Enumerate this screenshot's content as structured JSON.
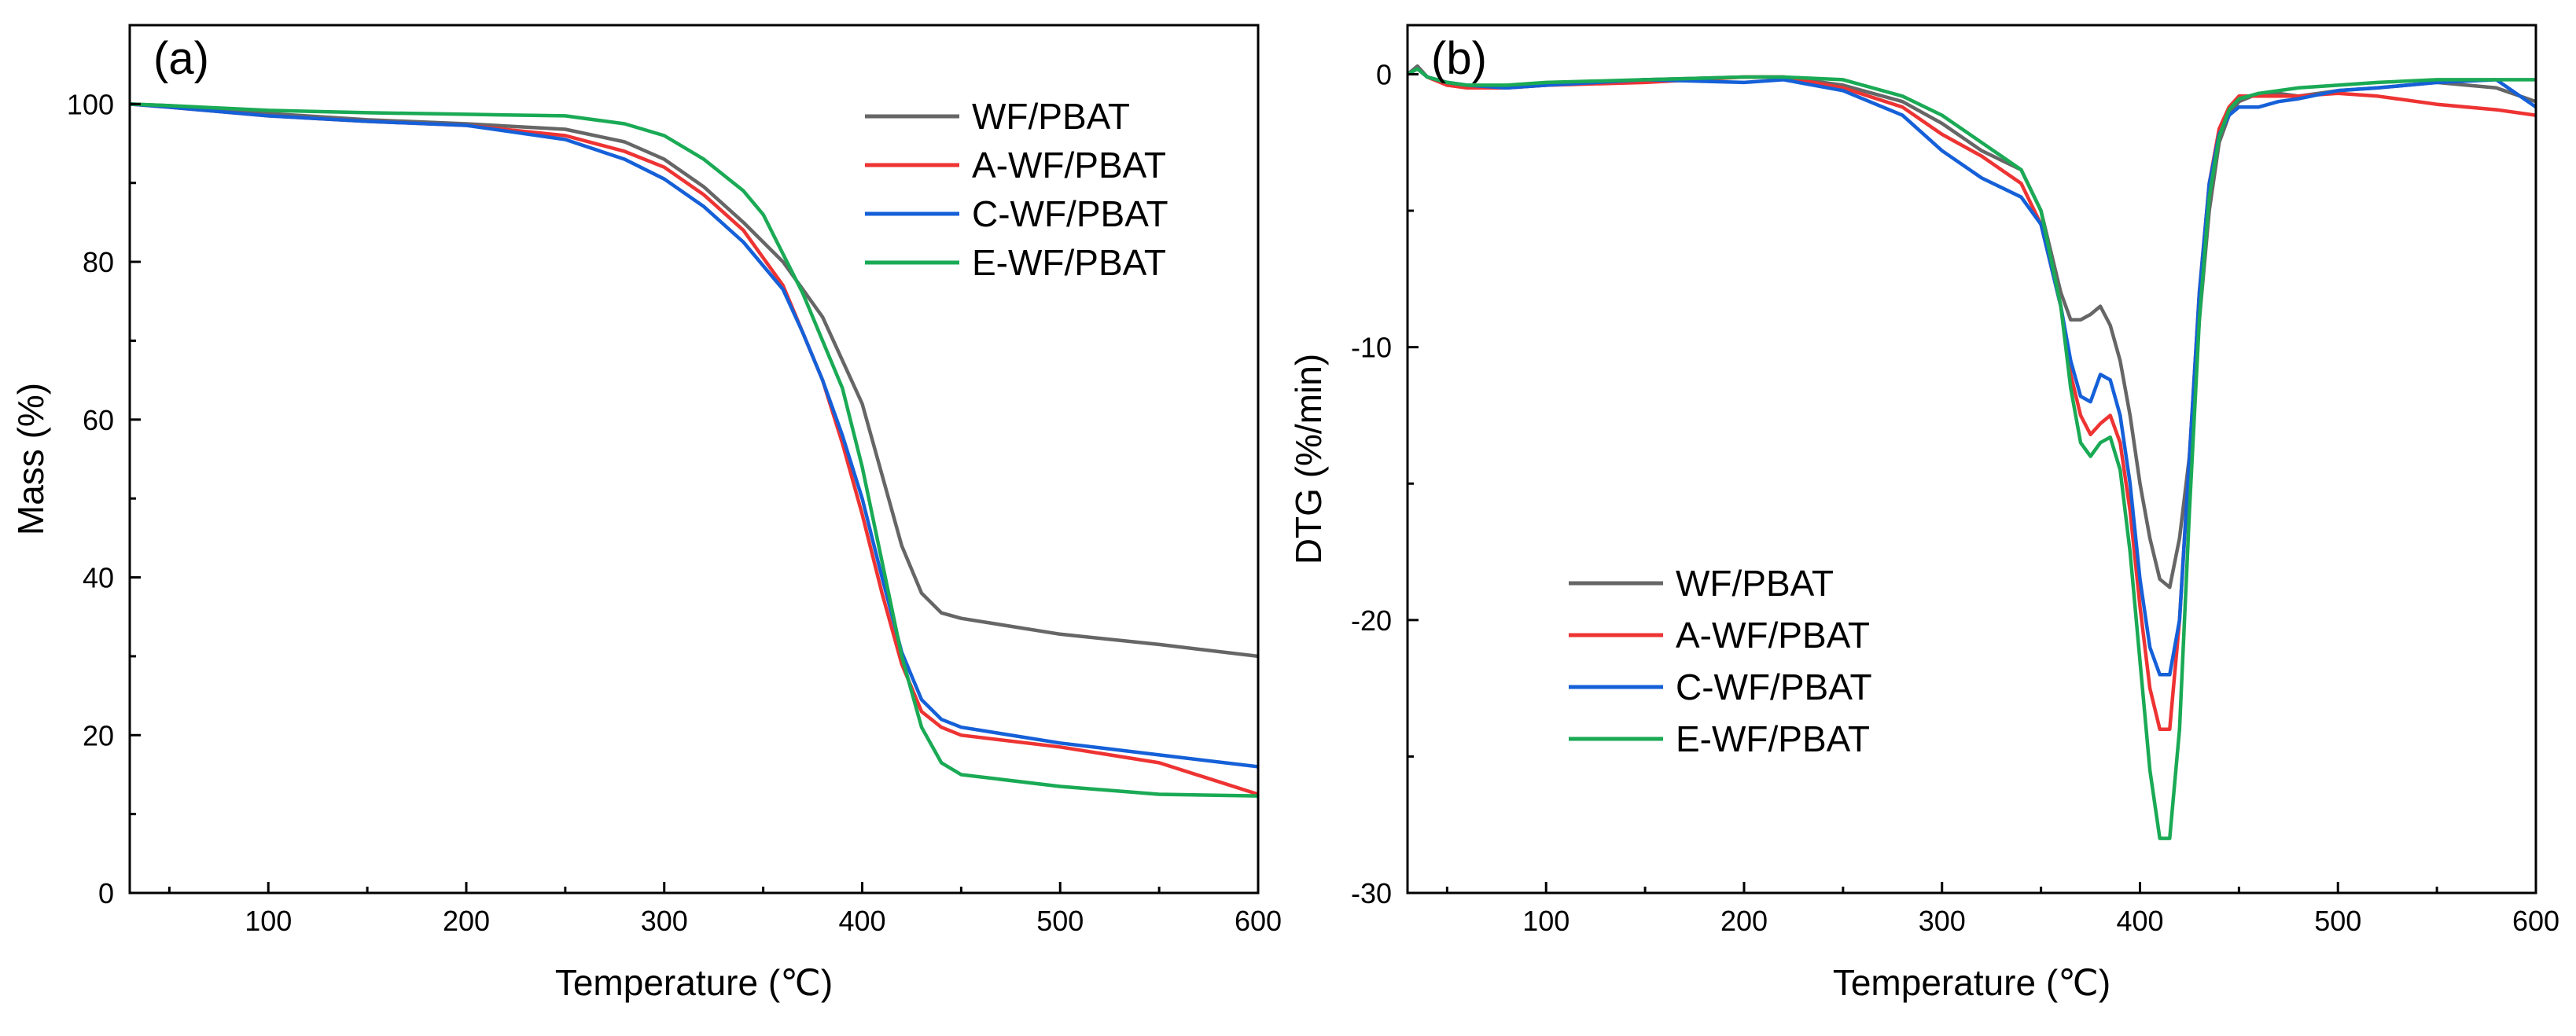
{
  "chart_data": [
    {
      "type": "line",
      "panel_label": "(a)",
      "xlabel": "Temperature (℃)",
      "ylabel": "Mass (%)",
      "xlim": [
        30,
        600
      ],
      "ylim": [
        0,
        110
      ],
      "xticks": [
        100,
        200,
        300,
        400,
        500,
        600
      ],
      "yticks": [
        0,
        20,
        40,
        60,
        80,
        100
      ],
      "legend_position": "top-right",
      "series": [
        {
          "name": "WF/PBAT",
          "color": "#666666",
          "x": [
            30,
            50,
            100,
            150,
            200,
            250,
            280,
            300,
            320,
            340,
            360,
            380,
            400,
            410,
            420,
            430,
            440,
            450,
            500,
            550,
            600
          ],
          "y": [
            100,
            99.8,
            98.8,
            98,
            97.5,
            96.8,
            95.2,
            93,
            89.5,
            85,
            80,
            73,
            62,
            53,
            44,
            38,
            35.5,
            34.8,
            32.8,
            31.5,
            30
          ]
        },
        {
          "name": "A-WF/PBAT",
          "color": "#ee3333",
          "x": [
            30,
            50,
            100,
            150,
            200,
            250,
            280,
            300,
            320,
            340,
            360,
            370,
            380,
            390,
            400,
            410,
            420,
            430,
            440,
            450,
            500,
            550,
            600
          ],
          "y": [
            100,
            99.6,
            98.5,
            97.8,
            97.3,
            96,
            94,
            92,
            88.5,
            84,
            77,
            71,
            65,
            57,
            48,
            38,
            29,
            23,
            21,
            20,
            18.5,
            16.5,
            12.5
          ]
        },
        {
          "name": "C-WF/PBAT",
          "color": "#1560d8",
          "x": [
            30,
            50,
            100,
            150,
            200,
            250,
            280,
            300,
            320,
            340,
            360,
            370,
            380,
            390,
            400,
            410,
            420,
            430,
            440,
            450,
            500,
            550,
            600
          ],
          "y": [
            100,
            99.6,
            98.5,
            97.8,
            97.3,
            95.5,
            93,
            90.5,
            87,
            82.5,
            76.5,
            71,
            65,
            58,
            50,
            40,
            30.5,
            24.5,
            22,
            21,
            19,
            17.5,
            16
          ]
        },
        {
          "name": "E-WF/PBAT",
          "color": "#1aaa55",
          "x": [
            30,
            50,
            100,
            150,
            200,
            250,
            280,
            300,
            320,
            340,
            350,
            360,
            370,
            380,
            390,
            400,
            410,
            420,
            430,
            440,
            450,
            500,
            550,
            600
          ],
          "y": [
            100,
            99.8,
            99.2,
            98.9,
            98.7,
            98.5,
            97.5,
            96,
            93,
            89,
            86,
            81,
            76,
            70,
            64,
            54,
            42,
            30,
            21,
            16.5,
            15,
            13.5,
            12.5,
            12.3
          ]
        }
      ]
    },
    {
      "type": "line",
      "panel_label": "(b)",
      "xlabel": "Temperature (℃)",
      "ylabel": "DTG (%/min)",
      "xlim": [
        30,
        600
      ],
      "ylim": [
        -30,
        1.8
      ],
      "xticks": [
        100,
        200,
        300,
        400,
        500,
        600
      ],
      "yticks": [
        -30,
        -20,
        -10,
        0
      ],
      "legend_position": "bottom-left",
      "series": [
        {
          "name": "WF/PBAT",
          "color": "#666666",
          "x": [
            30,
            35,
            40,
            50,
            60,
            80,
            100,
            150,
            200,
            220,
            250,
            280,
            300,
            320,
            340,
            350,
            360,
            365,
            370,
            375,
            380,
            385,
            390,
            395,
            400,
            405,
            410,
            415,
            420,
            425,
            430,
            435,
            440,
            445,
            450,
            460,
            470,
            480,
            500,
            520,
            550,
            580,
            600
          ],
          "y": [
            0,
            0.3,
            -0.1,
            -0.3,
            -0.4,
            -0.5,
            -0.4,
            -0.2,
            -0.1,
            -0.1,
            -0.4,
            -1,
            -1.8,
            -2.8,
            -3.5,
            -5,
            -8,
            -9,
            -9,
            -8.8,
            -8.5,
            -9.2,
            -10.5,
            -12.5,
            -15,
            -17,
            -18.5,
            -18.8,
            -17,
            -14,
            -9,
            -5,
            -2.5,
            -1.5,
            -1,
            -0.7,
            -0.7,
            -0.8,
            -0.6,
            -0.5,
            -0.3,
            -0.5,
            -1
          ]
        },
        {
          "name": "A-WF/PBAT",
          "color": "#ee3333",
          "x": [
            30,
            35,
            40,
            50,
            60,
            80,
            100,
            150,
            200,
            220,
            250,
            280,
            300,
            320,
            340,
            350,
            360,
            365,
            370,
            375,
            380,
            385,
            390,
            395,
            400,
            405,
            410,
            415,
            420,
            425,
            430,
            435,
            440,
            445,
            450,
            460,
            470,
            480,
            500,
            520,
            550,
            580,
            600
          ],
          "y": [
            0,
            0.2,
            -0.1,
            -0.4,
            -0.5,
            -0.5,
            -0.4,
            -0.3,
            -0.1,
            -0.1,
            -0.5,
            -1.2,
            -2.2,
            -3,
            -4,
            -5.5,
            -8.5,
            -11,
            -12.5,
            -13.2,
            -12.8,
            -12.5,
            -13.5,
            -16,
            -19.5,
            -22.5,
            -24,
            -24,
            -20,
            -14,
            -8,
            -4,
            -2,
            -1.2,
            -0.8,
            -0.8,
            -0.8,
            -0.8,
            -0.7,
            -0.8,
            -1.1,
            -1.3,
            -1.5
          ]
        },
        {
          "name": "C-WF/PBAT",
          "color": "#1560d8",
          "x": [
            30,
            35,
            40,
            50,
            60,
            80,
            100,
            150,
            200,
            220,
            250,
            280,
            300,
            320,
            340,
            350,
            360,
            365,
            370,
            375,
            380,
            385,
            390,
            395,
            400,
            405,
            410,
            415,
            420,
            425,
            430,
            435,
            440,
            445,
            450,
            460,
            470,
            480,
            500,
            520,
            550,
            580,
            600
          ],
          "y": [
            0,
            0.2,
            -0.1,
            -0.3,
            -0.4,
            -0.5,
            -0.4,
            -0.2,
            -0.3,
            -0.2,
            -0.6,
            -1.5,
            -2.8,
            -3.8,
            -4.5,
            -5.5,
            -8.5,
            -10.5,
            -11.8,
            -12,
            -11,
            -11.2,
            -12.5,
            -15,
            -18.5,
            -21,
            -22,
            -22,
            -20,
            -14,
            -8,
            -4,
            -2.2,
            -1.5,
            -1.2,
            -1.2,
            -1,
            -0.9,
            -0.6,
            -0.5,
            -0.3,
            -0.2,
            -1.2
          ]
        },
        {
          "name": "E-WF/PBAT",
          "color": "#1aaa55",
          "x": [
            30,
            35,
            40,
            50,
            60,
            80,
            100,
            150,
            200,
            220,
            250,
            280,
            300,
            320,
            340,
            350,
            360,
            365,
            370,
            375,
            380,
            385,
            390,
            395,
            400,
            405,
            410,
            415,
            420,
            425,
            430,
            435,
            440,
            445,
            450,
            460,
            470,
            480,
            500,
            520,
            550,
            580,
            600
          ],
          "y": [
            0,
            0.2,
            -0.1,
            -0.3,
            -0.4,
            -0.4,
            -0.3,
            -0.2,
            -0.1,
            -0.1,
            -0.2,
            -0.8,
            -1.5,
            -2.5,
            -3.5,
            -5,
            -8.5,
            -11.5,
            -13.5,
            -14,
            -13.5,
            -13.3,
            -14.5,
            -17.5,
            -21.5,
            -25.5,
            -28,
            -28,
            -24,
            -16,
            -9,
            -4.5,
            -2.3,
            -1.3,
            -0.9,
            -0.7,
            -0.6,
            -0.5,
            -0.4,
            -0.3,
            -0.2,
            -0.2,
            -0.2
          ]
        }
      ]
    }
  ]
}
